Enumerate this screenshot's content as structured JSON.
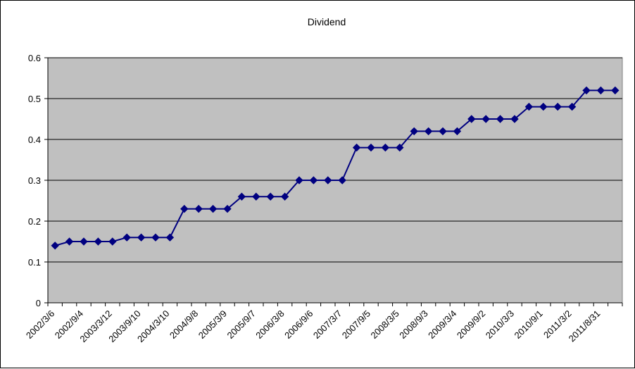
{
  "chart_data": {
    "type": "line",
    "title": "Dividend",
    "xlabel": "",
    "ylabel": "",
    "ylim": [
      0,
      0.6
    ],
    "yticks": [
      0,
      0.1,
      0.2,
      0.3,
      0.4,
      0.5,
      0.6
    ],
    "grid": true,
    "legend": "none",
    "colors": {
      "plot_background": "#c0c0c0",
      "series": "#000080",
      "gridline": "#000000"
    },
    "x_tick_labels": [
      "2002/3/6",
      "2002/9/4",
      "2003/3/12",
      "2003/9/10",
      "2004/3/10",
      "2004/9/8",
      "2005/3/9",
      "2005/9/7",
      "2006/3/8",
      "2006/9/6",
      "2007/3/7",
      "2007/9/5",
      "2008/3/5",
      "2008/9/3",
      "2009/3/4",
      "2009/9/2",
      "2010/3/3",
      "2010/9/1",
      "2011/3/2",
      "2011/8/31"
    ],
    "values": [
      0.14,
      0.15,
      0.15,
      0.15,
      0.15,
      0.16,
      0.16,
      0.16,
      0.16,
      0.23,
      0.23,
      0.23,
      0.23,
      0.26,
      0.26,
      0.26,
      0.26,
      0.3,
      0.3,
      0.3,
      0.3,
      0.38,
      0.38,
      0.38,
      0.38,
      0.42,
      0.42,
      0.42,
      0.42,
      0.45,
      0.45,
      0.45,
      0.45,
      0.48,
      0.48,
      0.48,
      0.48,
      0.52,
      0.52,
      0.52
    ]
  }
}
